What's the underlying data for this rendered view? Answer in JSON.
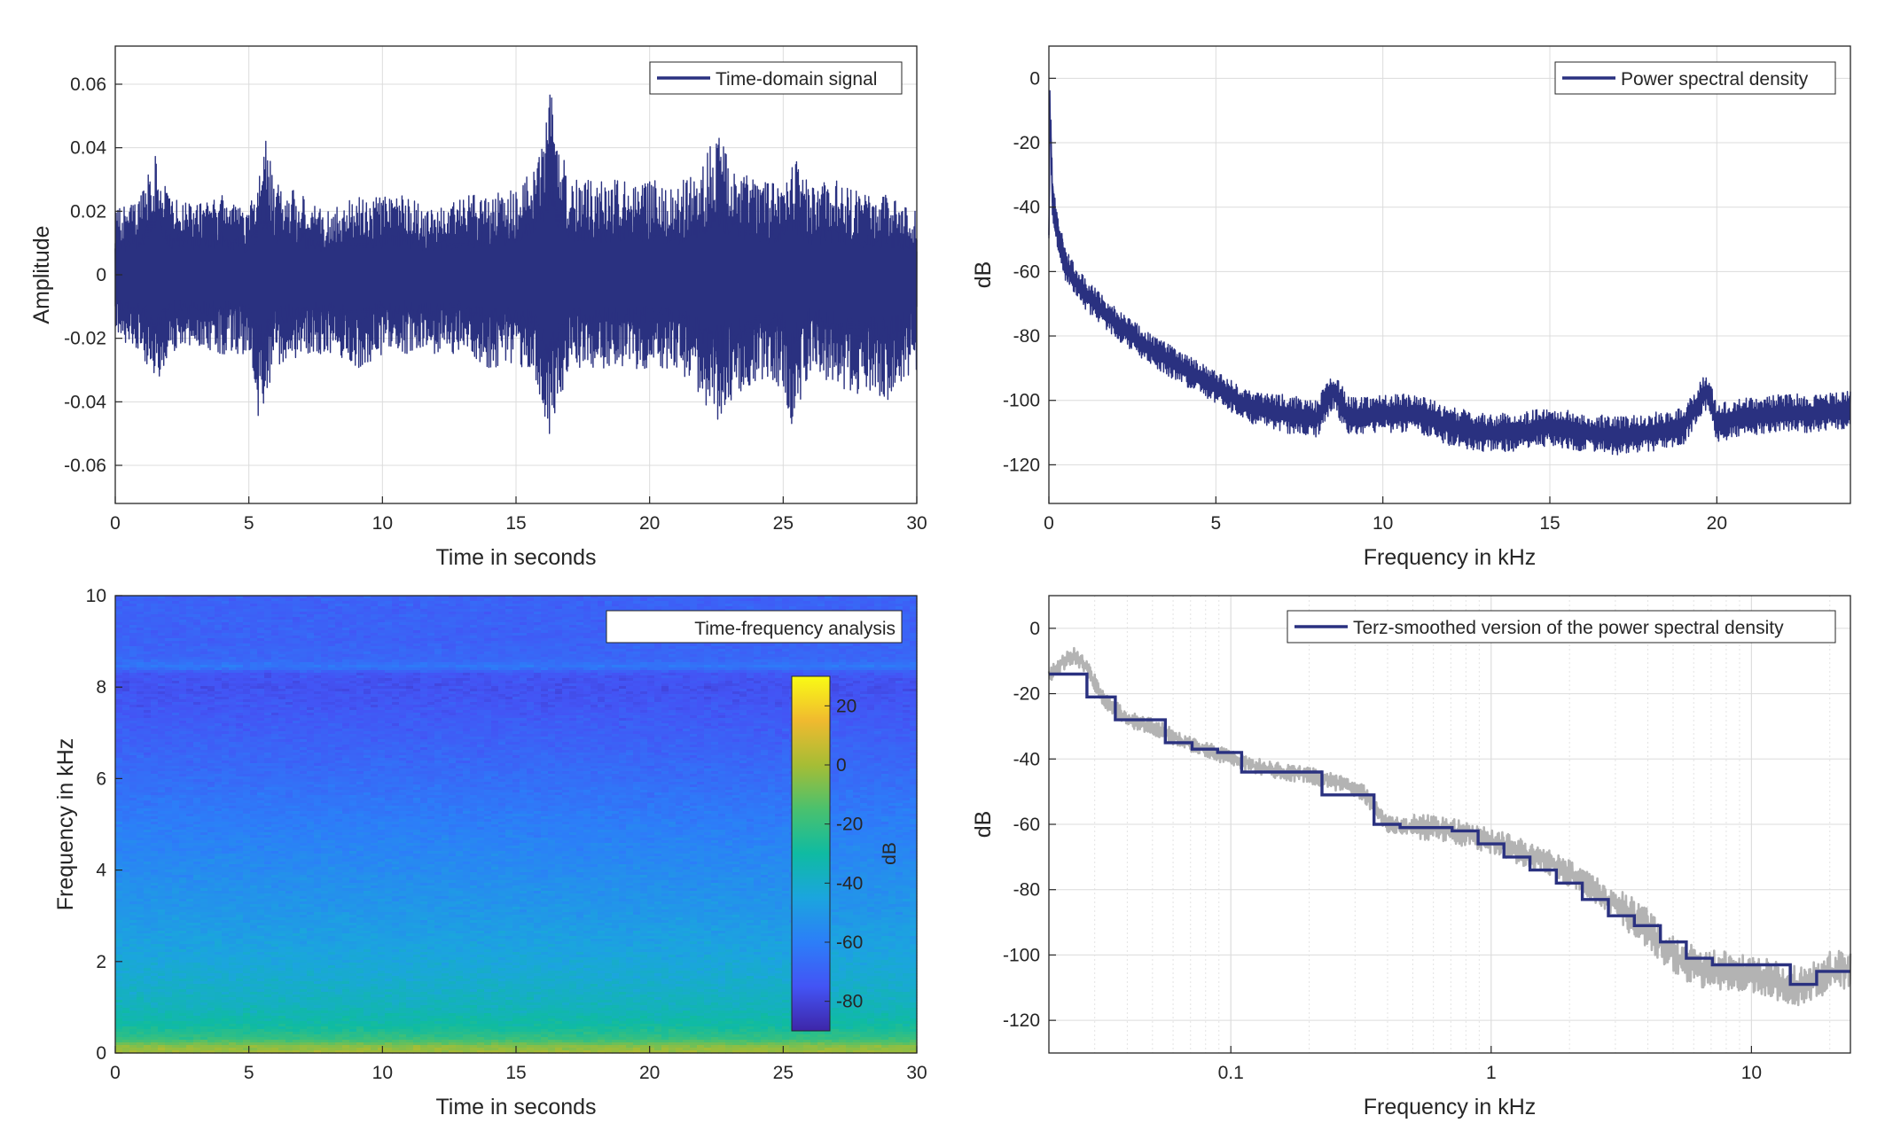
{
  "figure": {
    "background": "#ffffff"
  },
  "chart_data": [
    {
      "id": "time_signal",
      "type": "line",
      "title": "",
      "xlabel": "Time in seconds",
      "ylabel": "Amplitude",
      "xlim": [
        0,
        30
      ],
      "ylim": [
        -0.072,
        0.072
      ],
      "xticks": [
        0,
        5,
        10,
        15,
        20,
        25,
        30
      ],
      "xticklabels": [
        "0",
        "5",
        "10",
        "15",
        "20",
        "25",
        "30"
      ],
      "yticks": [
        -0.06,
        -0.04,
        -0.02,
        0,
        0.02,
        0.04,
        0.06
      ],
      "yticklabels": [
        "-0.06",
        "-0.04",
        "-0.02",
        "0",
        "0.02",
        "0.04",
        "0.06"
      ],
      "grid": true,
      "legend": {
        "placement": "top-right",
        "entries": [
          "Time-domain signal"
        ]
      },
      "series": [
        {
          "name": "Time-domain signal",
          "color": "#2a3180",
          "envelope": {
            "t": [
              0.0,
              1.0,
              1.5,
              2.0,
              3.0,
              4.0,
              5.0,
              5.4,
              5.6,
              6.0,
              7.0,
              8.0,
              9.0,
              10.0,
              11.0,
              12.0,
              13.0,
              14.0,
              15.0,
              15.8,
              16.3,
              16.6,
              17.0,
              18.0,
              19.0,
              20.0,
              21.0,
              22.0,
              22.5,
              23.0,
              24.0,
              25.0,
              25.3,
              26.0,
              27.0,
              28.0,
              29.0,
              30.0
            ],
            "max": [
              0.02,
              0.025,
              0.043,
              0.025,
              0.022,
              0.025,
              0.02,
              0.035,
              0.044,
              0.03,
              0.025,
              0.02,
              0.025,
              0.025,
              0.025,
              0.02,
              0.025,
              0.025,
              0.028,
              0.035,
              0.06,
              0.042,
              0.03,
              0.03,
              0.03,
              0.03,
              0.028,
              0.035,
              0.047,
              0.035,
              0.03,
              0.03,
              0.04,
              0.028,
              0.03,
              0.025,
              0.025,
              0.02
            ],
            "min": [
              -0.02,
              -0.025,
              -0.035,
              -0.025,
              -0.022,
              -0.025,
              -0.025,
              -0.049,
              -0.04,
              -0.03,
              -0.025,
              -0.025,
              -0.03,
              -0.025,
              -0.025,
              -0.025,
              -0.025,
              -0.03,
              -0.03,
              -0.035,
              -0.053,
              -0.04,
              -0.03,
              -0.03,
              -0.03,
              -0.03,
              -0.03,
              -0.04,
              -0.048,
              -0.04,
              -0.035,
              -0.035,
              -0.05,
              -0.03,
              -0.035,
              -0.04,
              -0.04,
              -0.03
            ]
          }
        }
      ]
    },
    {
      "id": "psd",
      "type": "line",
      "title": "",
      "xlabel": "Frequency in kHz",
      "ylabel": "dB",
      "xlim": [
        0,
        24
      ],
      "ylim": [
        -132,
        10
      ],
      "xticks": [
        0,
        5,
        10,
        15,
        20
      ],
      "xticklabels": [
        "0",
        "5",
        "10",
        "15",
        "20"
      ],
      "yticks": [
        -120,
        -100,
        -80,
        -60,
        -40,
        -20,
        0
      ],
      "yticklabels": [
        "-120",
        "-100",
        "-80",
        "-60",
        "-40",
        "-20",
        "0"
      ],
      "grid": true,
      "legend": {
        "placement": "top-right",
        "entries": [
          "Power spectral density"
        ]
      },
      "series": [
        {
          "name": "Power spectral density",
          "color": "#2a3180",
          "x": [
            0.0,
            0.03,
            0.1,
            0.2,
            0.5,
            1.0,
            2.0,
            3.0,
            4.0,
            5.0,
            6.0,
            7.0,
            8.0,
            8.5,
            9.0,
            10.0,
            11.0,
            12.0,
            13.0,
            14.0,
            15.0,
            16.0,
            17.0,
            18.0,
            19.0,
            19.7,
            20.0,
            21.0,
            22.0,
            23.0,
            24.0
          ],
          "y": [
            -50,
            -8,
            -35,
            -45,
            -58,
            -66,
            -76,
            -84,
            -90,
            -96,
            -102,
            -104,
            -106,
            -97,
            -105,
            -104,
            -104,
            -108,
            -110,
            -110,
            -108,
            -110,
            -111,
            -110,
            -108,
            -97,
            -107,
            -105,
            -104,
            -104,
            -103
          ],
          "spread": [
            4,
            8,
            8,
            6,
            5,
            5,
            5,
            5,
            5,
            5,
            5,
            6,
            6,
            6,
            6,
            6,
            6,
            6,
            6,
            6,
            6,
            6,
            6,
            6,
            6,
            6,
            6,
            6,
            6,
            6,
            6
          ]
        }
      ]
    },
    {
      "id": "spectrogram",
      "type": "heatmap",
      "title": "",
      "xlabel": "Time in seconds",
      "ylabel": "Frequency in kHz",
      "xlim": [
        0,
        30
      ],
      "ylim": [
        0,
        10
      ],
      "xticks": [
        0,
        5,
        10,
        15,
        20,
        25,
        30
      ],
      "xticklabels": [
        "0",
        "5",
        "10",
        "15",
        "20",
        "25",
        "30"
      ],
      "yticks": [
        0,
        2,
        4,
        6,
        8,
        10
      ],
      "yticklabels": [
        "0",
        "2",
        "4",
        "6",
        "8",
        "10"
      ],
      "legend": {
        "placement": "top-right",
        "entries": [
          "Time-frequency analysis"
        ]
      },
      "colormap": "parula",
      "colorbar": {
        "label": "dB",
        "range": [
          -90,
          30
        ],
        "ticks": [
          20,
          0,
          -20,
          -40,
          -60,
          -80
        ],
        "ticklabels": [
          "20",
          "0",
          "-20",
          "-40",
          "-60",
          "-80"
        ]
      },
      "profile": {
        "freq_khz": [
          0.0,
          0.15,
          0.3,
          0.6,
          1.0,
          1.5,
          2.0,
          3.0,
          4.0,
          5.0,
          6.0,
          7.0,
          7.6,
          8.0,
          8.3,
          8.45,
          8.6,
          9.0,
          10.0
        ],
        "level_db": [
          0,
          -5,
          -20,
          -30,
          -36,
          -40,
          -44,
          -50,
          -55,
          -60,
          -66,
          -71,
          -74,
          -76,
          -74,
          -62,
          -68,
          -70,
          -70
        ]
      }
    },
    {
      "id": "terz_psd",
      "type": "line",
      "title": "",
      "xlabel": "Frequency in kHz",
      "ylabel": "dB",
      "xscale": "log",
      "xlim": [
        0.02,
        24
      ],
      "ylim": [
        -130,
        10
      ],
      "xticks": [
        0.1,
        1,
        10
      ],
      "xticklabels": [
        "0.1",
        "1",
        "10"
      ],
      "yticks": [
        -120,
        -100,
        -80,
        -60,
        -40,
        -20,
        0
      ],
      "yticklabels": [
        "-120",
        "-100",
        "-80",
        "-60",
        "-40",
        "-20",
        "0"
      ],
      "grid": true,
      "legend": {
        "placement": "top-right",
        "entries": [
          "Terz-smoothed version of the power spectral density"
        ]
      },
      "series": [
        {
          "name": "",
          "color": "#b3b3b3",
          "x": [
            0.02,
            0.025,
            0.028,
            0.032,
            0.04,
            0.05,
            0.063,
            0.08,
            0.1,
            0.125,
            0.16,
            0.2,
            0.25,
            0.32,
            0.4,
            0.5,
            0.63,
            0.8,
            1.0,
            1.25,
            1.6,
            2.0,
            2.5,
            3.2,
            4.0,
            5.0,
            6.3,
            8.0,
            10.0,
            12.5,
            16.0,
            20.0,
            24.0
          ],
          "y": [
            -14,
            -8,
            -12,
            -21,
            -28,
            -30,
            -34,
            -37,
            -40,
            -42,
            -44,
            -45,
            -47,
            -50,
            -60,
            -61,
            -61,
            -63,
            -65,
            -68,
            -71,
            -75,
            -80,
            -86,
            -92,
            -100,
            -104,
            -105,
            -106,
            -108,
            -110,
            -105,
            -104
          ]
        },
        {
          "name": "Terz-smoothed version of the power spectral density",
          "color": "#2a3180",
          "step_edges": [
            0.02,
            0.028,
            0.036,
            0.045,
            0.056,
            0.071,
            0.089,
            0.11,
            0.14,
            0.178,
            0.224,
            0.282,
            0.355,
            0.447,
            0.562,
            0.708,
            0.891,
            1.12,
            1.41,
            1.78,
            2.24,
            2.82,
            3.55,
            4.47,
            5.62,
            7.08,
            8.91,
            11.2,
            14.1,
            17.8,
            24.0
          ],
          "step_values": [
            -14,
            -21,
            -28,
            -28,
            -35,
            -37,
            -38,
            -44,
            -44,
            -44,
            -51,
            -51,
            -60,
            -61,
            -61,
            -62,
            -66,
            -70,
            -74,
            -78,
            -83,
            -88,
            -91,
            -96,
            -101,
            -103,
            -103,
            -103,
            -109,
            -105
          ]
        }
      ]
    }
  ]
}
